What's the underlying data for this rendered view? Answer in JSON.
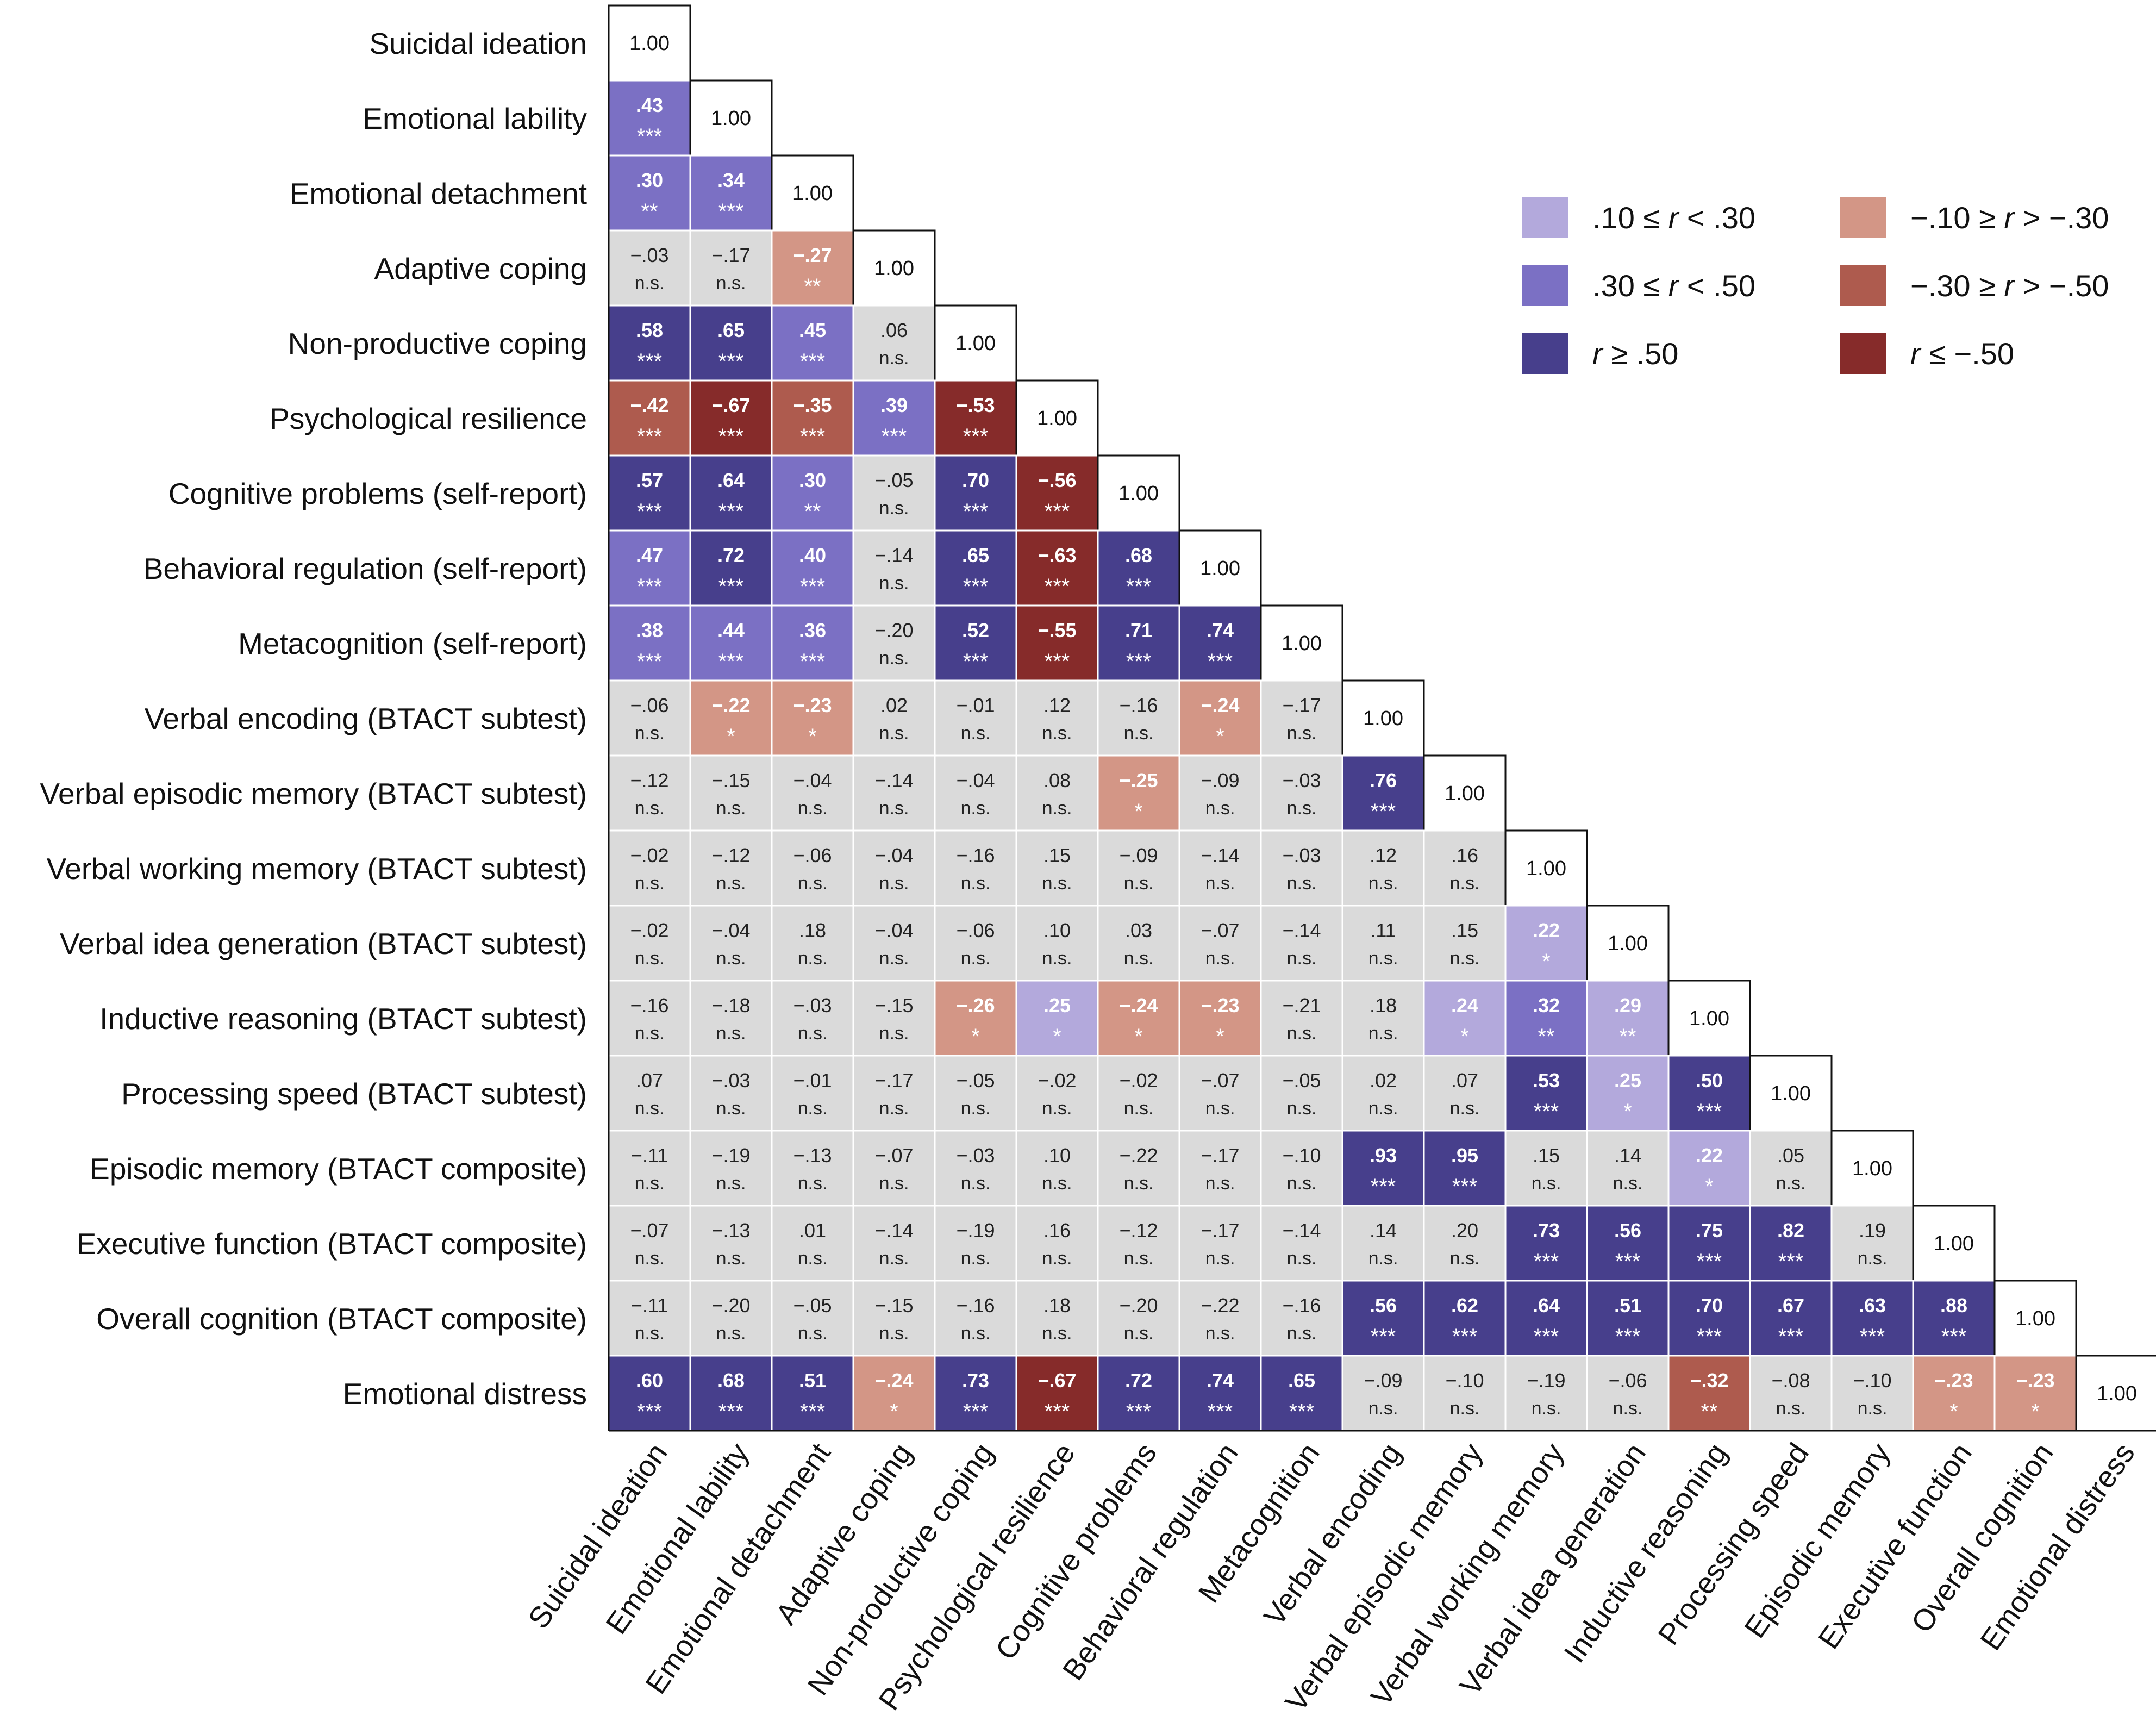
{
  "colors": {
    "pos_weak": "#b3a9dc",
    "pos_mod": "#7b70c4",
    "pos_strong": "#473f8c",
    "neg_weak": "#d39686",
    "neg_mod": "#ae5b4e",
    "neg_strong": "#862b2a",
    "nonsig": "#dadada",
    "diagonal": "#ffffff",
    "text_dark": "#222222",
    "text_light": "#ffffff"
  },
  "chart_data": {
    "type": "heatmap",
    "title": "",
    "row_labels": [
      "Suicidal ideation",
      "Emotional lability",
      "Emotional detachment",
      "Adaptive coping",
      "Non-productive coping",
      "Psychological resilience",
      "Cognitive problems (self-report)",
      "Behavioral regulation (self-report)",
      "Metacognition (self-report)",
      "Verbal encoding (BTACT subtest)",
      "Verbal episodic memory (BTACT subtest)",
      "Verbal working memory (BTACT subtest)",
      "Verbal idea generation (BTACT subtest)",
      "Inductive reasoning (BTACT subtest)",
      "Processing speed (BTACT subtest)",
      "Episodic memory (BTACT composite)",
      "Executive function (BTACT composite)",
      "Overall cognition (BTACT composite)",
      "Emotional distress"
    ],
    "col_labels": [
      "Suicidal ideation",
      "Emotional lability",
      "Emotional detachment",
      "Adaptive coping",
      "Non-productive coping",
      "Psychological resilience",
      "Cognitive problems",
      "Behavioral regulation",
      "Metacognition",
      "Verbal encoding",
      "Verbal episodic memory",
      "Verbal working memory",
      "Verbal idea generation",
      "Inductive reasoning",
      "Processing speed",
      "Episodic memory",
      "Executive function",
      "Overall cognition",
      "Emotional distress"
    ],
    "diagonal_label": "1.00",
    "cells": [
      [],
      [
        [
          ".43",
          "***"
        ]
      ],
      [
        [
          ".30",
          "**"
        ],
        [
          ".34",
          "***"
        ]
      ],
      [
        [
          "−.03",
          "n.s."
        ],
        [
          "−.17",
          "n.s."
        ],
        [
          "−.27",
          "**"
        ]
      ],
      [
        [
          ".58",
          "***"
        ],
        [
          ".65",
          "***"
        ],
        [
          ".45",
          "***"
        ],
        [
          ".06",
          "n.s."
        ]
      ],
      [
        [
          "−.42",
          "***"
        ],
        [
          "−.67",
          "***"
        ],
        [
          "−.35",
          "***"
        ],
        [
          ".39",
          "***"
        ],
        [
          "−.53",
          "***"
        ]
      ],
      [
        [
          ".57",
          "***"
        ],
        [
          ".64",
          "***"
        ],
        [
          ".30",
          "**"
        ],
        [
          "−.05",
          "n.s."
        ],
        [
          ".70",
          "***"
        ],
        [
          "−.56",
          "***"
        ]
      ],
      [
        [
          ".47",
          "***"
        ],
        [
          ".72",
          "***"
        ],
        [
          ".40",
          "***"
        ],
        [
          "−.14",
          "n.s."
        ],
        [
          ".65",
          "***"
        ],
        [
          "−.63",
          "***"
        ],
        [
          ".68",
          "***"
        ]
      ],
      [
        [
          ".38",
          "***"
        ],
        [
          ".44",
          "***"
        ],
        [
          ".36",
          "***"
        ],
        [
          "−.20",
          "n.s."
        ],
        [
          ".52",
          "***"
        ],
        [
          "−.55",
          "***"
        ],
        [
          ".71",
          "***"
        ],
        [
          ".74",
          "***"
        ]
      ],
      [
        [
          "−.06",
          "n.s."
        ],
        [
          "−.22",
          "*"
        ],
        [
          "−.23",
          "*"
        ],
        [
          ".02",
          "n.s."
        ],
        [
          "−.01",
          "n.s."
        ],
        [
          ".12",
          "n.s."
        ],
        [
          "−.16",
          "n.s."
        ],
        [
          "−.24",
          "*"
        ],
        [
          "−.17",
          "n.s."
        ]
      ],
      [
        [
          "−.12",
          "n.s."
        ],
        [
          "−.15",
          "n.s."
        ],
        [
          "−.04",
          "n.s."
        ],
        [
          "−.14",
          "n.s."
        ],
        [
          "−.04",
          "n.s."
        ],
        [
          ".08",
          "n.s."
        ],
        [
          "−.25",
          "*"
        ],
        [
          "−.09",
          "n.s."
        ],
        [
          "−.03",
          "n.s."
        ],
        [
          ".76",
          "***"
        ]
      ],
      [
        [
          "−.02",
          "n.s."
        ],
        [
          "−.12",
          "n.s."
        ],
        [
          "−.06",
          "n.s."
        ],
        [
          "−.04",
          "n.s."
        ],
        [
          "−.16",
          "n.s."
        ],
        [
          ".15",
          "n.s."
        ],
        [
          "−.09",
          "n.s."
        ],
        [
          "−.14",
          "n.s."
        ],
        [
          "−.03",
          "n.s."
        ],
        [
          ".12",
          "n.s."
        ],
        [
          ".16",
          "n.s."
        ]
      ],
      [
        [
          "−.02",
          "n.s."
        ],
        [
          "−.04",
          "n.s."
        ],
        [
          ".18",
          "n.s."
        ],
        [
          "−.04",
          "n.s."
        ],
        [
          "−.06",
          "n.s."
        ],
        [
          ".10",
          "n.s."
        ],
        [
          ".03",
          "n.s."
        ],
        [
          "−.07",
          "n.s."
        ],
        [
          "−.14",
          "n.s."
        ],
        [
          ".11",
          "n.s."
        ],
        [
          ".15",
          "n.s."
        ],
        [
          ".22",
          "*"
        ]
      ],
      [
        [
          "−.16",
          "n.s."
        ],
        [
          "−.18",
          "n.s."
        ],
        [
          "−.03",
          "n.s."
        ],
        [
          "−.15",
          "n.s."
        ],
        [
          "−.26",
          "*"
        ],
        [
          ".25",
          "*"
        ],
        [
          "−.24",
          "*"
        ],
        [
          "−.23",
          "*"
        ],
        [
          "−.21",
          "n.s."
        ],
        [
          ".18",
          "n.s."
        ],
        [
          ".24",
          "*"
        ],
        [
          ".32",
          "**"
        ],
        [
          ".29",
          "**"
        ]
      ],
      [
        [
          ".07",
          "n.s."
        ],
        [
          "−.03",
          "n.s."
        ],
        [
          "−.01",
          "n.s."
        ],
        [
          "−.17",
          "n.s."
        ],
        [
          "−.05",
          "n.s."
        ],
        [
          "−.02",
          "n.s."
        ],
        [
          "−.02",
          "n.s."
        ],
        [
          "−.07",
          "n.s."
        ],
        [
          "−.05",
          "n.s."
        ],
        [
          ".02",
          "n.s."
        ],
        [
          ".07",
          "n.s."
        ],
        [
          ".53",
          "***"
        ],
        [
          ".25",
          "*"
        ],
        [
          ".50",
          "***"
        ]
      ],
      [
        [
          "−.11",
          "n.s."
        ],
        [
          "−.19",
          "n.s."
        ],
        [
          "−.13",
          "n.s."
        ],
        [
          "−.07",
          "n.s."
        ],
        [
          "−.03",
          "n.s."
        ],
        [
          ".10",
          "n.s."
        ],
        [
          "−.22",
          "n.s."
        ],
        [
          "−.17",
          "n.s."
        ],
        [
          "−.10",
          "n.s."
        ],
        [
          ".93",
          "***"
        ],
        [
          ".95",
          "***"
        ],
        [
          ".15",
          "n.s."
        ],
        [
          ".14",
          "n.s."
        ],
        [
          ".22",
          "*"
        ],
        [
          ".05",
          "n.s."
        ]
      ],
      [
        [
          "−.07",
          "n.s."
        ],
        [
          "−.13",
          "n.s."
        ],
        [
          ".01",
          "n.s."
        ],
        [
          "−.14",
          "n.s."
        ],
        [
          "−.19",
          "n.s."
        ],
        [
          ".16",
          "n.s."
        ],
        [
          "−.12",
          "n.s."
        ],
        [
          "−.17",
          "n.s."
        ],
        [
          "−.14",
          "n.s."
        ],
        [
          ".14",
          "n.s."
        ],
        [
          ".20",
          "n.s."
        ],
        [
          ".73",
          "***"
        ],
        [
          ".56",
          "***"
        ],
        [
          ".75",
          "***"
        ],
        [
          ".82",
          "***"
        ],
        [
          ".19",
          "n.s."
        ]
      ],
      [
        [
          "−.11",
          "n.s."
        ],
        [
          "−.20",
          "n.s."
        ],
        [
          "−.05",
          "n.s."
        ],
        [
          "−.15",
          "n.s."
        ],
        [
          "−.16",
          "n.s."
        ],
        [
          ".18",
          "n.s."
        ],
        [
          "−.20",
          "n.s."
        ],
        [
          "−.22",
          "n.s."
        ],
        [
          "−.16",
          "n.s."
        ],
        [
          ".56",
          "***"
        ],
        [
          ".62",
          "***"
        ],
        [
          ".64",
          "***"
        ],
        [
          ".51",
          "***"
        ],
        [
          ".70",
          "***"
        ],
        [
          ".67",
          "***"
        ],
        [
          ".63",
          "***"
        ],
        [
          ".88",
          "***"
        ]
      ],
      [
        [
          ".60",
          "***"
        ],
        [
          ".68",
          "***"
        ],
        [
          ".51",
          "***"
        ],
        [
          "−.24",
          "*"
        ],
        [
          ".73",
          "***"
        ],
        [
          "−.67",
          "***"
        ],
        [
          ".72",
          "***"
        ],
        [
          ".74",
          "***"
        ],
        [
          ".65",
          "***"
        ],
        [
          "−.09",
          "n.s."
        ],
        [
          "−.10",
          "n.s."
        ],
        [
          "−.19",
          "n.s."
        ],
        [
          "−.06",
          "n.s."
        ],
        [
          "−.32",
          "**"
        ],
        [
          "−.08",
          "n.s."
        ],
        [
          "−.10",
          "n.s."
        ],
        [
          "−.23",
          "*"
        ],
        [
          "−.23",
          "*"
        ]
      ]
    ],
    "legend": [
      {
        "label_pre": ".10 ≤ ",
        "var": "r",
        "label_post": " < .30",
        "category": "pos_weak"
      },
      {
        "label_pre": ".30 ≤ ",
        "var": "r",
        "label_post": " < .50",
        "category": "pos_mod"
      },
      {
        "label_pre": "",
        "var": "r",
        "label_post": " ≥ .50",
        "category": "pos_strong"
      },
      {
        "label_pre": "−.10 ≥ ",
        "var": "r",
        "label_post": " > −.30",
        "category": "neg_weak"
      },
      {
        "label_pre": "−.30 ≥ ",
        "var": "r",
        "label_post": " > −.50",
        "category": "neg_mod"
      },
      {
        "label_pre": "",
        "var": "r",
        "label_post": " ≤ −.50",
        "category": "neg_strong"
      }
    ]
  }
}
